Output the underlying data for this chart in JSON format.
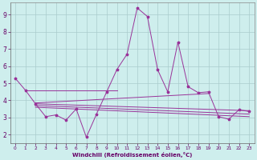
{
  "xlabel": "Windchill (Refroidissement éolien,°C)",
  "background_color": "#ceeeed",
  "grid_color": "#aacccc",
  "line_color": "#993399",
  "xlim": [
    -0.5,
    23.5
  ],
  "ylim": [
    1.5,
    9.7
  ],
  "yticks": [
    2,
    3,
    4,
    5,
    6,
    7,
    8,
    9
  ],
  "xticks": [
    0,
    1,
    2,
    3,
    4,
    5,
    6,
    7,
    8,
    9,
    10,
    11,
    12,
    13,
    14,
    15,
    16,
    17,
    18,
    19,
    20,
    21,
    22,
    23
  ],
  "main_line_x": [
    0,
    1,
    2,
    3,
    4,
    5,
    6,
    7,
    8,
    9,
    10,
    11,
    12,
    13,
    14,
    15,
    16,
    17,
    18,
    19,
    20,
    21,
    22,
    23
  ],
  "main_line_y": [
    5.3,
    4.6,
    3.8,
    3.05,
    3.15,
    2.85,
    3.5,
    1.85,
    3.2,
    4.5,
    5.8,
    6.7,
    9.4,
    8.9,
    5.8,
    4.5,
    7.4,
    4.8,
    4.45,
    4.5,
    3.05,
    2.9,
    3.45,
    3.35
  ],
  "trend_lines": [
    {
      "x": [
        1,
        10
      ],
      "y": [
        4.6,
        4.6
      ]
    },
    {
      "x": [
        2,
        19
      ],
      "y": [
        3.85,
        4.4
      ]
    },
    {
      "x": [
        2,
        23
      ],
      "y": [
        3.8,
        3.4
      ]
    },
    {
      "x": [
        2,
        23
      ],
      "y": [
        3.7,
        3.2
      ]
    },
    {
      "x": [
        2,
        23
      ],
      "y": [
        3.6,
        3.05
      ]
    }
  ]
}
